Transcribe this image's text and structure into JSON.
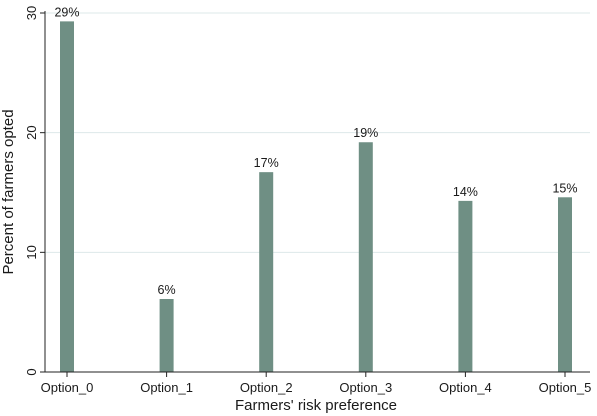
{
  "chart_data": {
    "type": "bar",
    "categories": [
      "Option_0",
      "Option_1",
      "Option_2",
      "Option_3",
      "Option_4",
      "Option_5"
    ],
    "values": [
      29.3,
      6.1,
      16.7,
      19.2,
      14.3,
      14.6
    ],
    "data_labels": [
      "29%",
      "6%",
      "17%",
      "19%",
      "14%",
      "15%"
    ],
    "xlabel": "Farmers' risk preference",
    "ylabel": "Percent of farmers opted",
    "ylim": [
      0,
      30
    ],
    "yticks": [
      0,
      10,
      20,
      30
    ],
    "grid": true,
    "legend": "none",
    "colors": {
      "bar": "#6f8f84",
      "grid": "#dde8ea",
      "axis": "#222222"
    }
  }
}
